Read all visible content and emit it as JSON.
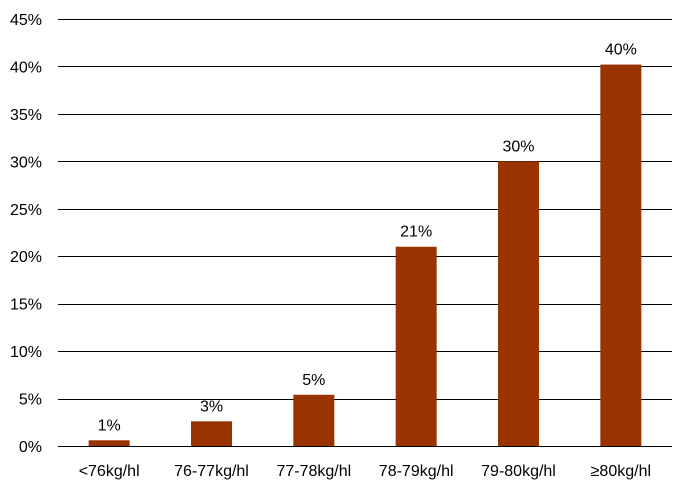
{
  "chart_data": {
    "type": "bar",
    "title": "",
    "xlabel": "",
    "ylabel": "",
    "categories": [
      "<76kg/hl",
      "76-77kg/hl",
      "77-78kg/hl",
      "78-79kg/hl",
      "79-80kg/hl",
      "≥80kg/hl"
    ],
    "values": [
      0.6,
      2.6,
      5.4,
      21,
      30,
      40.2
    ],
    "data_labels": [
      "1%",
      "3%",
      "5%",
      "21%",
      "30%",
      "40%"
    ],
    "ylim": [
      0,
      45
    ],
    "yticks": [
      0,
      5,
      10,
      15,
      20,
      25,
      30,
      35,
      40,
      45
    ],
    "ytick_labels": [
      "0%",
      "5%",
      "10%",
      "15%",
      "20%",
      "25%",
      "30%",
      "35%",
      "40%",
      "45%"
    ],
    "grid": true,
    "legend": "none",
    "bar_color": "#993300",
    "grid_color": "#000000"
  }
}
